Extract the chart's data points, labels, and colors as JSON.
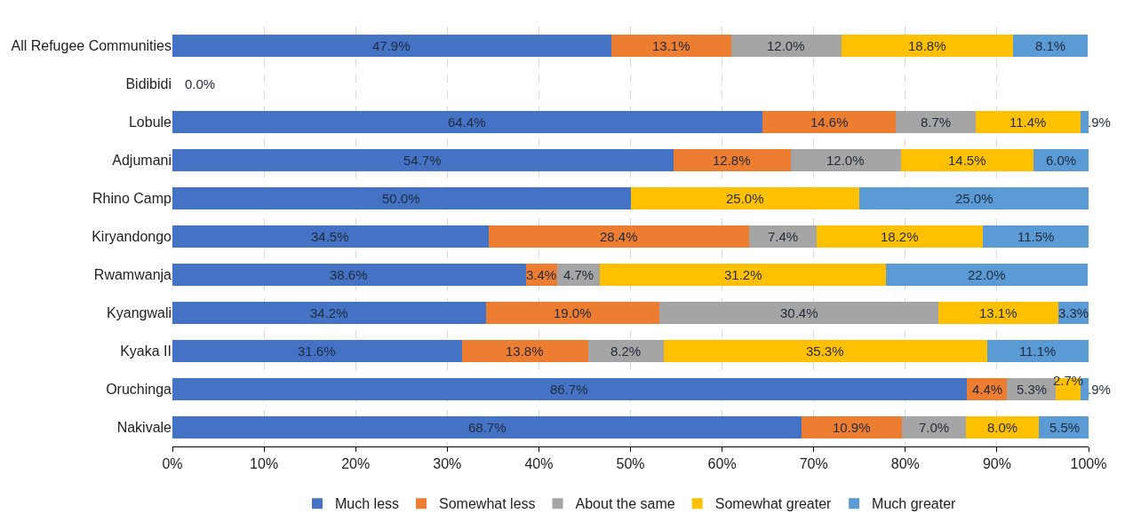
{
  "chart_data": {
    "type": "bar",
    "orientation": "horizontal",
    "stacked": true,
    "categories": [
      "All Refugee Communities",
      "Bidibidi",
      "Lobule",
      "Adjumani",
      "Rhino Camp",
      "Kiryandongo",
      "Rwamwanja",
      "Kyangwali",
      "Kyaka II",
      "Oruchinga",
      "Nakivale"
    ],
    "series": [
      {
        "name": "Much less",
        "color": "#4472c4",
        "values": [
          47.9,
          0,
          64.4,
          54.7,
          50.0,
          34.5,
          38.6,
          34.2,
          31.6,
          86.7,
          68.7
        ],
        "value_labels": [
          "47.9%",
          "0.0%",
          "64.4%",
          "54.7%",
          "50.0%",
          "34.5%",
          "38.6%",
          "34.2%",
          "31.6%",
          "86.7%",
          "68.7%"
        ]
      },
      {
        "name": "Somewhat less",
        "color": "#ed7d31",
        "values": [
          13.1,
          0,
          14.6,
          12.8,
          0,
          28.4,
          3.4,
          19.0,
          13.8,
          4.4,
          10.9
        ],
        "value_labels": [
          "13.1%",
          null,
          "14.6%",
          "12.8%",
          null,
          "28.4%",
          "3.4%",
          "19.0%",
          "13.8%",
          "4.4%",
          "10.9%"
        ]
      },
      {
        "name": "About the same",
        "color": "#a5a5a5",
        "values": [
          12.0,
          0,
          8.7,
          12.0,
          0,
          7.4,
          4.7,
          30.4,
          8.2,
          5.3,
          7.0
        ],
        "value_labels": [
          "12.0%",
          null,
          "8.7%",
          "12.0%",
          null,
          "7.4%",
          "4.7%",
          "30.4%",
          "8.2%",
          "5.3%",
          "7.0%"
        ]
      },
      {
        "name": "Somewhat greater",
        "color": "#ffc000",
        "values": [
          18.8,
          0,
          11.4,
          14.5,
          25.0,
          18.2,
          31.2,
          13.1,
          35.3,
          2.7,
          8.0
        ],
        "value_labels": [
          "18.8%",
          null,
          "11.4%",
          "14.5%",
          "25.0%",
          "18.2%",
          "31.2%",
          "13.1%",
          "35.3%",
          "2.7%",
          "8.0%"
        ]
      },
      {
        "name": "Much greater",
        "color": "#5b9bd5",
        "values": [
          8.1,
          0,
          0.9,
          6.0,
          25.0,
          11.5,
          22.0,
          3.3,
          11.1,
          0.9,
          5.5
        ],
        "value_labels": [
          "8.1%",
          null,
          ".9%",
          "6.0%",
          "25.0%",
          "11.5%",
          "22.0%",
          "3.3%",
          "11.1%",
          ".9%",
          "5.5%"
        ]
      }
    ],
    "xlim": [
      0,
      100
    ],
    "xticks": [
      {
        "value": 0,
        "label": "0%"
      },
      {
        "value": 10,
        "label": "10%"
      },
      {
        "value": 20,
        "label": "20%"
      },
      {
        "value": 30,
        "label": "30%"
      },
      {
        "value": 40,
        "label": "40%"
      },
      {
        "value": 50,
        "label": "50%"
      },
      {
        "value": 60,
        "label": "60%"
      },
      {
        "value": 70,
        "label": "70%"
      },
      {
        "value": 80,
        "label": "80%"
      },
      {
        "value": 90,
        "label": "90%"
      },
      {
        "value": 100,
        "label": "100%"
      }
    ],
    "grid": "x",
    "legend": "bottom"
  }
}
